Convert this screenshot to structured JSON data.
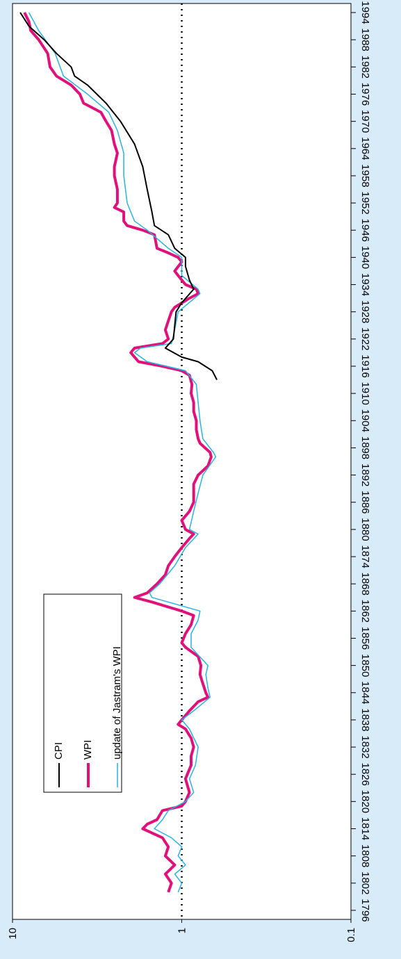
{
  "chart_data": {
    "type": "line",
    "log_scale": true,
    "xlim": [
      1794,
      1996
    ],
    "xticks": [
      1796,
      1802,
      1808,
      1814,
      1820,
      1826,
      1832,
      1838,
      1844,
      1850,
      1856,
      1862,
      1868,
      1874,
      1880,
      1886,
      1892,
      1898,
      1904,
      1910,
      1916,
      1922,
      1928,
      1934,
      1940,
      1946,
      1952,
      1958,
      1964,
      1970,
      1976,
      1982,
      1988,
      1994
    ],
    "ylim": [
      0.1,
      10
    ],
    "yticks": [
      10,
      1,
      0.1
    ],
    "reference_line": 1,
    "series": [
      {
        "name": "CPI",
        "color": "#000000",
        "width": 2,
        "x": [
          1913,
          1915,
          1917,
          1918,
          1920,
          1922,
          1925,
          1928,
          1930,
          1933,
          1935,
          1938,
          1940,
          1942,
          1945,
          1947,
          1950,
          1955,
          1960,
          1965,
          1970,
          1974,
          1978,
          1980,
          1982,
          1985,
          1988,
          1991,
          1994
        ],
        "values": [
          0.62,
          0.66,
          0.8,
          1.0,
          1.25,
          1.12,
          1.1,
          1.08,
          1.0,
          0.85,
          0.9,
          0.95,
          0.95,
          1.1,
          1.2,
          1.45,
          1.5,
          1.6,
          1.7,
          1.9,
          2.3,
          2.8,
          3.6,
          4.3,
          4.5,
          5.5,
          6.5,
          8.0,
          9.0
        ]
      },
      {
        "name": "WPI",
        "color": "#e0127a",
        "width": 4,
        "x": [
          1800,
          1802,
          1804,
          1806,
          1808,
          1810,
          1812,
          1814,
          1815,
          1816,
          1818,
          1819,
          1820,
          1822,
          1825,
          1828,
          1830,
          1832,
          1834,
          1836,
          1837,
          1838,
          1840,
          1842,
          1843,
          1844,
          1846,
          1848,
          1850,
          1852,
          1854,
          1855,
          1857,
          1859,
          1861,
          1862,
          1864,
          1865,
          1866,
          1868,
          1870,
          1872,
          1874,
          1876,
          1878,
          1879,
          1880,
          1882,
          1884,
          1886,
          1888,
          1890,
          1892,
          1894,
          1896,
          1897,
          1899,
          1900,
          1902,
          1904,
          1906,
          1908,
          1910,
          1912,
          1914,
          1915,
          1916,
          1917,
          1919,
          1920,
          1921,
          1922,
          1924,
          1926,
          1928,
          1929,
          1931,
          1932,
          1933,
          1934,
          1936,
          1937,
          1939,
          1940,
          1941,
          1942,
          1945,
          1946,
          1947,
          1948,
          1950,
          1951,
          1952,
          1955,
          1958,
          1960,
          1963,
          1965,
          1968,
          1970,
          1972,
          1974,
          1976,
          1978,
          1980,
          1982,
          1985,
          1988,
          1990,
          1992,
          1994
        ],
        "values": [
          1.2,
          1.15,
          1.25,
          1.1,
          1.25,
          1.2,
          1.3,
          1.7,
          1.6,
          1.4,
          1.3,
          1.0,
          0.95,
          0.9,
          0.95,
          0.88,
          0.88,
          0.85,
          0.88,
          0.95,
          1.05,
          1.0,
          0.9,
          0.8,
          0.7,
          0.72,
          0.75,
          0.78,
          0.77,
          0.8,
          0.95,
          1.0,
          0.95,
          0.88,
          0.85,
          1.0,
          1.5,
          1.9,
          1.6,
          1.4,
          1.25,
          1.2,
          1.1,
          1.0,
          0.9,
          0.85,
          0.95,
          1.0,
          0.9,
          0.85,
          0.85,
          0.85,
          0.8,
          0.7,
          0.67,
          0.68,
          0.78,
          0.8,
          0.82,
          0.82,
          0.85,
          0.85,
          0.88,
          0.87,
          0.9,
          1.0,
          1.3,
          1.8,
          2.0,
          1.9,
          1.3,
          1.2,
          1.25,
          1.2,
          1.15,
          1.1,
          0.9,
          0.8,
          0.82,
          0.95,
          1.05,
          1.1,
          1.0,
          1.05,
          1.2,
          1.4,
          1.45,
          1.7,
          2.1,
          2.2,
          2.2,
          2.5,
          2.4,
          2.4,
          2.5,
          2.5,
          2.4,
          2.5,
          2.6,
          2.8,
          3.0,
          3.8,
          4.0,
          4.5,
          5.5,
          6.0,
          6.2,
          7.0,
          7.8,
          8.0,
          8.5
        ]
      },
      {
        "name": "update of Jastram's WPI",
        "color": "#29b1e3",
        "width": 1.5,
        "x": [
          1800,
          1802,
          1804,
          1806,
          1808,
          1810,
          1812,
          1814,
          1816,
          1818,
          1820,
          1822,
          1825,
          1828,
          1832,
          1836,
          1838,
          1840,
          1843,
          1845,
          1848,
          1850,
          1854,
          1857,
          1860,
          1862,
          1865,
          1866,
          1868,
          1872,
          1876,
          1879,
          1880,
          1884,
          1888,
          1892,
          1896,
          1897,
          1900,
          1904,
          1908,
          1912,
          1915,
          1917,
          1919,
          1920,
          1921,
          1924,
          1928,
          1932,
          1933,
          1936,
          1940,
          1942,
          1946,
          1948,
          1952,
          1958,
          1963,
          1968,
          1972,
          1976,
          1980,
          1985,
          1990,
          1994
        ],
        "values": [
          1.05,
          1.0,
          1.1,
          0.95,
          1.05,
          1.0,
          1.15,
          1.45,
          1.3,
          1.2,
          0.95,
          0.85,
          0.9,
          0.83,
          0.8,
          0.9,
          1.0,
          0.85,
          0.68,
          0.7,
          0.72,
          0.7,
          0.88,
          0.88,
          0.8,
          0.78,
          1.5,
          1.55,
          1.35,
          1.1,
          0.95,
          0.8,
          0.9,
          0.85,
          0.8,
          0.75,
          0.63,
          0.65,
          0.75,
          0.78,
          0.8,
          0.82,
          0.95,
          1.6,
          1.9,
          1.75,
          1.15,
          1.1,
          1.05,
          0.78,
          0.8,
          1.0,
          1.0,
          1.2,
          1.6,
          1.9,
          2.1,
          2.2,
          2.2,
          2.4,
          2.7,
          3.6,
          5.0,
          5.6,
          7.0,
          8.0
        ]
      }
    ]
  }
}
